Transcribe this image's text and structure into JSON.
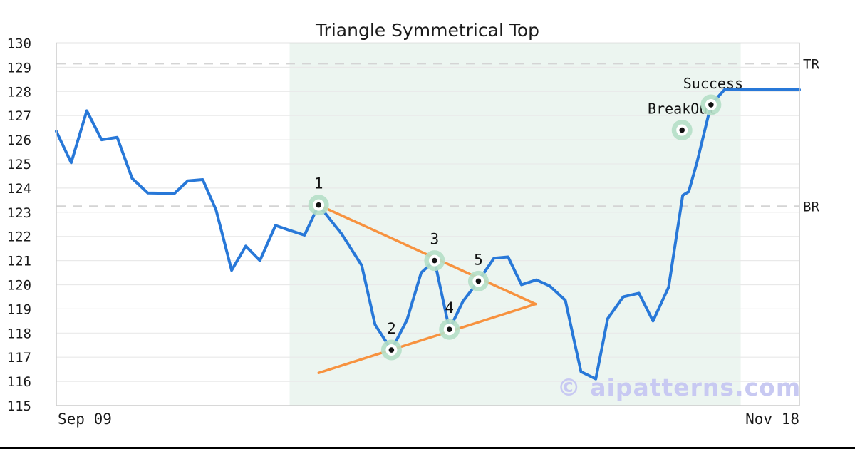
{
  "title": "Triangle Symmetrical Top",
  "watermark": "© aipatterns.com",
  "colors": {
    "price_line": "#2878d8",
    "trendline": "#f7923f",
    "shade": "#ecf5f0",
    "grid": "#e9e9e9",
    "dashed_level": "#d4d4d4",
    "spine": "#cccccc",
    "text": "#1a1a1a",
    "marker_ring": "#b5dfc6",
    "marker_core": "#ffffff",
    "marker_dot": "#111111",
    "watermark": "#c8c9f2",
    "bottom_bar": "#000000"
  },
  "chart_data": {
    "type": "line",
    "title": "Triangle Symmetrical Top",
    "xlabel": "",
    "ylabel": "",
    "ylim": [
      115,
      130
    ],
    "y_ticks": [
      115,
      116,
      117,
      118,
      119,
      120,
      121,
      122,
      123,
      124,
      125,
      126,
      127,
      128,
      129,
      130
    ],
    "x_tick_labels": [
      "Sep 09",
      "Nov 18"
    ],
    "grid": true,
    "legend": "none",
    "levels": [
      {
        "label": "TR",
        "value": 129.15
      },
      {
        "label": "BR",
        "value": 123.25
      }
    ],
    "shaded_region": {
      "x_start": 0.314,
      "x_end": 0.921
    },
    "series": [
      {
        "name": "price",
        "points": [
          [
            0.0,
            126.35
          ],
          [
            0.02,
            125.05
          ],
          [
            0.041,
            127.2
          ],
          [
            0.061,
            126.0
          ],
          [
            0.082,
            126.1
          ],
          [
            0.102,
            124.4
          ],
          [
            0.123,
            123.8
          ],
          [
            0.159,
            123.78
          ],
          [
            0.177,
            124.3
          ],
          [
            0.197,
            124.35
          ],
          [
            0.215,
            123.1
          ],
          [
            0.236,
            120.6
          ],
          [
            0.255,
            121.6
          ],
          [
            0.274,
            121.0
          ],
          [
            0.295,
            122.45
          ],
          [
            0.314,
            122.25
          ],
          [
            0.334,
            122.05
          ],
          [
            0.353,
            123.3
          ],
          [
            0.384,
            122.1
          ],
          [
            0.411,
            120.8
          ],
          [
            0.429,
            118.35
          ],
          [
            0.451,
            117.3
          ],
          [
            0.472,
            118.55
          ],
          [
            0.491,
            120.5
          ],
          [
            0.509,
            121.0
          ],
          [
            0.529,
            118.15
          ],
          [
            0.547,
            119.3
          ],
          [
            0.568,
            120.15
          ],
          [
            0.589,
            121.1
          ],
          [
            0.608,
            121.15
          ],
          [
            0.626,
            120.0
          ],
          [
            0.646,
            120.2
          ],
          [
            0.664,
            119.95
          ],
          [
            0.685,
            119.35
          ],
          [
            0.706,
            116.4
          ],
          [
            0.726,
            116.1
          ],
          [
            0.742,
            118.6
          ],
          [
            0.763,
            119.5
          ],
          [
            0.784,
            119.65
          ],
          [
            0.803,
            118.5
          ],
          [
            0.824,
            119.9
          ],
          [
            0.843,
            123.7
          ],
          [
            0.851,
            123.85
          ],
          [
            0.862,
            125.05
          ],
          [
            0.881,
            127.45
          ],
          [
            0.899,
            128.07
          ],
          [
            1.0,
            128.07
          ]
        ]
      }
    ],
    "pattern_lines": [
      {
        "name": "upper-trendline",
        "from": [
          0.353,
          123.3
        ],
        "to": [
          0.645,
          119.2
        ]
      },
      {
        "name": "lower-trendline",
        "from": [
          0.353,
          116.35
        ],
        "to": [
          0.645,
          119.2
        ]
      }
    ],
    "annotations": [
      {
        "label": "1",
        "x": 0.353,
        "y": 123.3,
        "kind": "number"
      },
      {
        "label": "2",
        "x": 0.451,
        "y": 117.3,
        "kind": "number"
      },
      {
        "label": "3",
        "x": 0.509,
        "y": 121.0,
        "kind": "number"
      },
      {
        "label": "4",
        "x": 0.529,
        "y": 118.15,
        "kind": "number"
      },
      {
        "label": "5",
        "x": 0.568,
        "y": 120.15,
        "kind": "number"
      },
      {
        "label": "BreakOut",
        "x": 0.842,
        "y": 126.4,
        "kind": "text"
      },
      {
        "label": "Success",
        "x": 0.881,
        "y": 127.45,
        "kind": "text"
      }
    ]
  }
}
